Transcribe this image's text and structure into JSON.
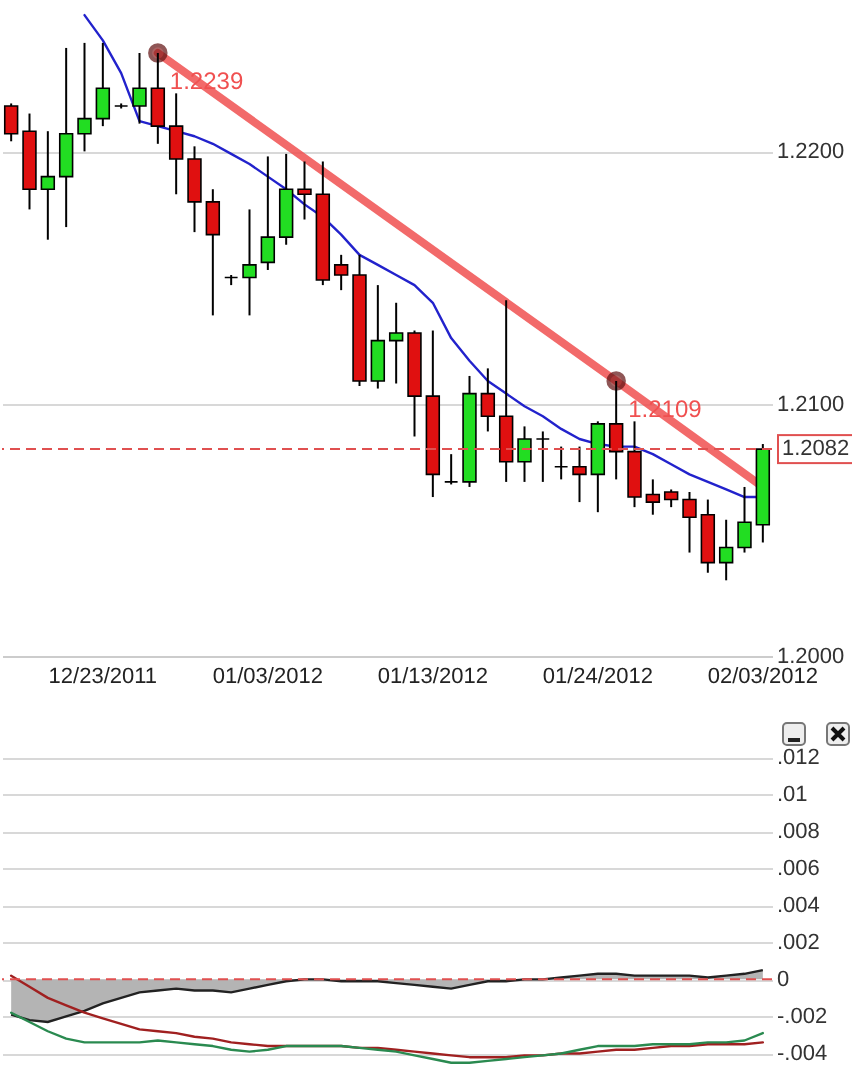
{
  "chart_data": [
    {
      "type": "candlestick",
      "categories": [
        null,
        null,
        null,
        null,
        null,
        "12/23/2011",
        null,
        null,
        null,
        null,
        null,
        null,
        null,
        null,
        "01/03/2012",
        null,
        null,
        null,
        null,
        null,
        null,
        null,
        null,
        "01/13/2012",
        null,
        null,
        null,
        null,
        null,
        null,
        null,
        null,
        "01/24/2012",
        null,
        null,
        null,
        null,
        null,
        null,
        null,
        null,
        "02/03/2012"
      ],
      "ohlc": [
        [
          1.2218,
          1.2219,
          1.2204,
          1.2207
        ],
        [
          1.2208,
          1.2215,
          1.2177,
          1.2185
        ],
        [
          1.2185,
          1.2208,
          1.2165,
          1.219
        ],
        [
          1.219,
          1.2241,
          1.217,
          1.2207
        ],
        [
          1.2207,
          1.2243,
          1.22,
          1.2213
        ],
        [
          1.2213,
          1.2243,
          1.221,
          1.2225
        ],
        [
          1.2218,
          1.2219,
          1.2217,
          1.2218
        ],
        [
          1.2218,
          1.2239,
          1.2211,
          1.2225
        ],
        [
          1.2225,
          1.2239,
          1.2203,
          1.221
        ],
        [
          1.221,
          1.2223,
          1.2183,
          1.2197
        ],
        [
          1.2197,
          1.2202,
          1.2168,
          1.218
        ],
        [
          1.218,
          1.2185,
          1.2135,
          1.2167
        ],
        [
          1.215,
          1.2151,
          1.2147,
          1.215
        ],
        [
          1.215,
          1.2177,
          1.2135,
          1.2155
        ],
        [
          1.2156,
          1.2198,
          1.2153,
          1.2166
        ],
        [
          1.2166,
          1.2199,
          1.2163,
          1.2185
        ],
        [
          1.2185,
          1.2196,
          1.2173,
          1.2183
        ],
        [
          1.2183,
          1.2196,
          1.2147,
          1.2149
        ],
        [
          1.2155,
          1.2159,
          1.2145,
          1.2151
        ],
        [
          1.2151,
          1.2159,
          1.2107,
          1.2109
        ],
        [
          1.2109,
          1.2147,
          1.2106,
          1.2125
        ],
        [
          1.2125,
          1.214,
          1.2108,
          1.2128
        ],
        [
          1.2128,
          1.2129,
          1.2087,
          1.2103
        ],
        [
          1.2103,
          1.2129,
          1.2063,
          1.2072
        ],
        [
          1.2069,
          1.208,
          1.2068,
          1.2069
        ],
        [
          1.2069,
          1.2111,
          1.2067,
          1.2104
        ],
        [
          1.2104,
          1.2114,
          1.2089,
          1.2095
        ],
        [
          1.2095,
          1.2141,
          1.2069,
          1.2077
        ],
        [
          1.2077,
          1.2091,
          1.2069,
          1.2086
        ],
        [
          1.2086,
          1.2089,
          1.2069,
          1.2086
        ],
        [
          1.2075,
          1.2083,
          1.207,
          1.2075
        ],
        [
          1.2075,
          1.2083,
          1.2061,
          1.2072
        ],
        [
          1.2072,
          1.2093,
          1.2057,
          1.2092
        ],
        [
          1.2092,
          1.2109,
          1.207,
          1.2081
        ],
        [
          1.2081,
          1.2093,
          1.2059,
          1.2063
        ],
        [
          1.2064,
          1.207,
          1.2056,
          1.2061
        ],
        [
          1.2065,
          1.2066,
          1.2059,
          1.2062
        ],
        [
          1.2062,
          1.2065,
          1.2041,
          1.2055
        ],
        [
          1.2056,
          1.2062,
          1.2033,
          1.2037
        ],
        [
          1.2037,
          1.2054,
          1.203,
          1.2043
        ],
        [
          1.2043,
          1.2067,
          1.2041,
          1.2053
        ],
        [
          1.2052,
          1.2084,
          1.2045,
          1.2082
        ]
      ],
      "colors": [
        "#e01010",
        "#e01010",
        "#22dd22",
        "#22dd22",
        "#22dd22",
        "#22dd22",
        "#000000",
        "#22dd22",
        "#e01010",
        "#e01010",
        "#e01010",
        "#e01010",
        "#000000",
        "#22dd22",
        "#22dd22",
        "#22dd22",
        "#e01010",
        "#e01010",
        "#e01010",
        "#e01010",
        "#22dd22",
        "#22dd22",
        "#e01010",
        "#e01010",
        "#000000",
        "#22dd22",
        "#e01010",
        "#e01010",
        "#22dd22",
        "#000000",
        "#000000",
        "#e01010",
        "#22dd22",
        "#e01010",
        "#e01010",
        "#e01010",
        "#e01010",
        "#e01010",
        "#e01010",
        "#22dd22",
        "#22dd22",
        "#22dd22"
      ],
      "series": [
        {
          "type": "line",
          "color": "#2222cc",
          "values": [
            null,
            null,
            null,
            null,
            1.2254,
            1.2244,
            1.2231,
            1.2212,
            1.221,
            1.2208,
            1.2206,
            1.2203,
            1.2199,
            1.2195,
            1.219,
            1.2185,
            1.2179,
            1.2174,
            1.2167,
            1.2159,
            1.2155,
            1.2151,
            1.2147,
            1.214,
            1.2126,
            1.2117,
            1.2109,
            1.2104,
            1.2099,
            1.2095,
            1.209,
            1.2086,
            1.2084,
            1.2083,
            1.2083,
            1.208,
            1.2076,
            1.2072,
            1.2069,
            1.2066,
            1.2063,
            1.2063
          ]
        },
        {
          "type": "line",
          "color": "#f05050",
          "marker": "circle",
          "values": [
            null,
            null,
            null,
            null,
            null,
            null,
            null,
            null,
            1.2239,
            null,
            null,
            null,
            null,
            null,
            null,
            null,
            null,
            null,
            null,
            null,
            null,
            null,
            null,
            null,
            null,
            null,
            null,
            null,
            null,
            null,
            null,
            null,
            null,
            1.2109,
            null,
            null,
            null,
            null,
            null,
            null,
            null,
            1.2067
          ],
          "value_labels": [
            null,
            null,
            null,
            null,
            null,
            null,
            null,
            null,
            "1.2239",
            null,
            null,
            null,
            null,
            null,
            null,
            null,
            null,
            null,
            null,
            null,
            null,
            null,
            null,
            null,
            null,
            null,
            null,
            null,
            null,
            null,
            null,
            null,
            null,
            "1.2109",
            null,
            null,
            null,
            null,
            null,
            null,
            null,
            null
          ]
        }
      ],
      "ylim": [
        1.2,
        1.226
      ],
      "yticks": [
        {
          "value": 1.2,
          "label": "1.2000"
        },
        {
          "value": 1.21,
          "label": "1.2100"
        },
        {
          "value": 1.22,
          "label": "1.2200"
        }
      ],
      "grid": "y",
      "ref_lines": [
        {
          "axis": "y",
          "value": 1.2082,
          "label": "1.2082",
          "color": "#e05050",
          "line_style": "dashed"
        }
      ]
    },
    {
      "type": "line",
      "categories": [
        null,
        null,
        null,
        null,
        null,
        null,
        null,
        null,
        null,
        null,
        null,
        null,
        null,
        null,
        null,
        null,
        null,
        null,
        null,
        null,
        null,
        null,
        null,
        null,
        null,
        null,
        null,
        null,
        null,
        null,
        null,
        null,
        null,
        null,
        null,
        null,
        null,
        null,
        null,
        null,
        null,
        null
      ],
      "series": [
        {
          "type": "area",
          "color": "#b4b4b4",
          "values": [
            -0.0019,
            -0.0022,
            -0.0023,
            -0.002,
            -0.0017,
            -0.0013,
            -0.001,
            -0.0007,
            -0.0006,
            -0.0005,
            -0.0006,
            -0.0006,
            -0.0007,
            -0.0005,
            -0.0003,
            -0.0001,
            0,
            0,
            -0.0001,
            -0.0001,
            -0.0001,
            -0.0002,
            -0.0003,
            -0.0004,
            -0.0005,
            -0.0003,
            -0.0001,
            -0.0001,
            0,
            0,
            0.0001,
            0.0002,
            0.0003,
            0.0003,
            0.0002,
            0.0002,
            0.0002,
            0.0002,
            0.0001,
            0.0002,
            0.0003,
            0.0005
          ]
        },
        {
          "type": "line",
          "color": "#a02020",
          "values": [
            0.0002,
            -0.0004,
            -0.001,
            -0.0014,
            -0.0018,
            -0.0021,
            -0.0024,
            -0.0027,
            -0.0028,
            -0.0029,
            -0.0031,
            -0.0032,
            -0.0034,
            -0.0035,
            -0.0036,
            -0.0036,
            null,
            null,
            -0.0036,
            -0.0037,
            -0.0037,
            -0.0038,
            -0.0039,
            -0.004,
            -0.0041,
            -0.0042,
            -0.0042,
            -0.0042,
            -0.0041,
            -0.0041,
            -0.004,
            -0.004,
            -0.0039,
            -0.0038,
            -0.0038,
            -0.0037,
            -0.0036,
            -0.0036,
            -0.0035,
            -0.0035,
            -0.0035,
            -0.0034
          ]
        },
        {
          "type": "line",
          "color": "#2a8a50",
          "values": [
            -0.0018,
            -0.0023,
            -0.0028,
            -0.0032,
            -0.0034,
            -0.0034,
            -0.0034,
            -0.0034,
            -0.0033,
            -0.0034,
            -0.0035,
            -0.0036,
            -0.0038,
            -0.0039,
            -0.0038,
            -0.0036,
            null,
            null,
            -0.0036,
            -0.0037,
            -0.0038,
            -0.0039,
            -0.0041,
            -0.0043,
            -0.0045,
            -0.0045,
            -0.0044,
            -0.0043,
            -0.0042,
            -0.0041,
            -0.004,
            -0.0038,
            -0.0036,
            -0.0036,
            -0.0036,
            -0.0035,
            -0.0035,
            -0.0035,
            -0.0034,
            -0.0034,
            -0.0033,
            -0.0029
          ]
        }
      ],
      "ylim": [
        -0.005,
        0.014
      ],
      "yticks": [
        {
          "value": -0.004,
          "label": "-.004"
        },
        {
          "value": -0.002,
          "label": "-.002"
        },
        {
          "value": 0,
          "label": "0"
        },
        {
          "value": 0.002,
          "label": ".002"
        },
        {
          "value": 0.004,
          "label": ".004"
        },
        {
          "value": 0.006,
          "label": ".006"
        },
        {
          "value": 0.008,
          "label": ".008"
        },
        {
          "value": 0.01,
          "label": ".01"
        },
        {
          "value": 0.012,
          "label": ".012"
        }
      ],
      "grid": "y",
      "tick_labels": "y",
      "ref_lines": [
        {
          "axis": "y",
          "value": 0,
          "color": "#e05050",
          "line_style": "dashed"
        }
      ]
    }
  ]
}
